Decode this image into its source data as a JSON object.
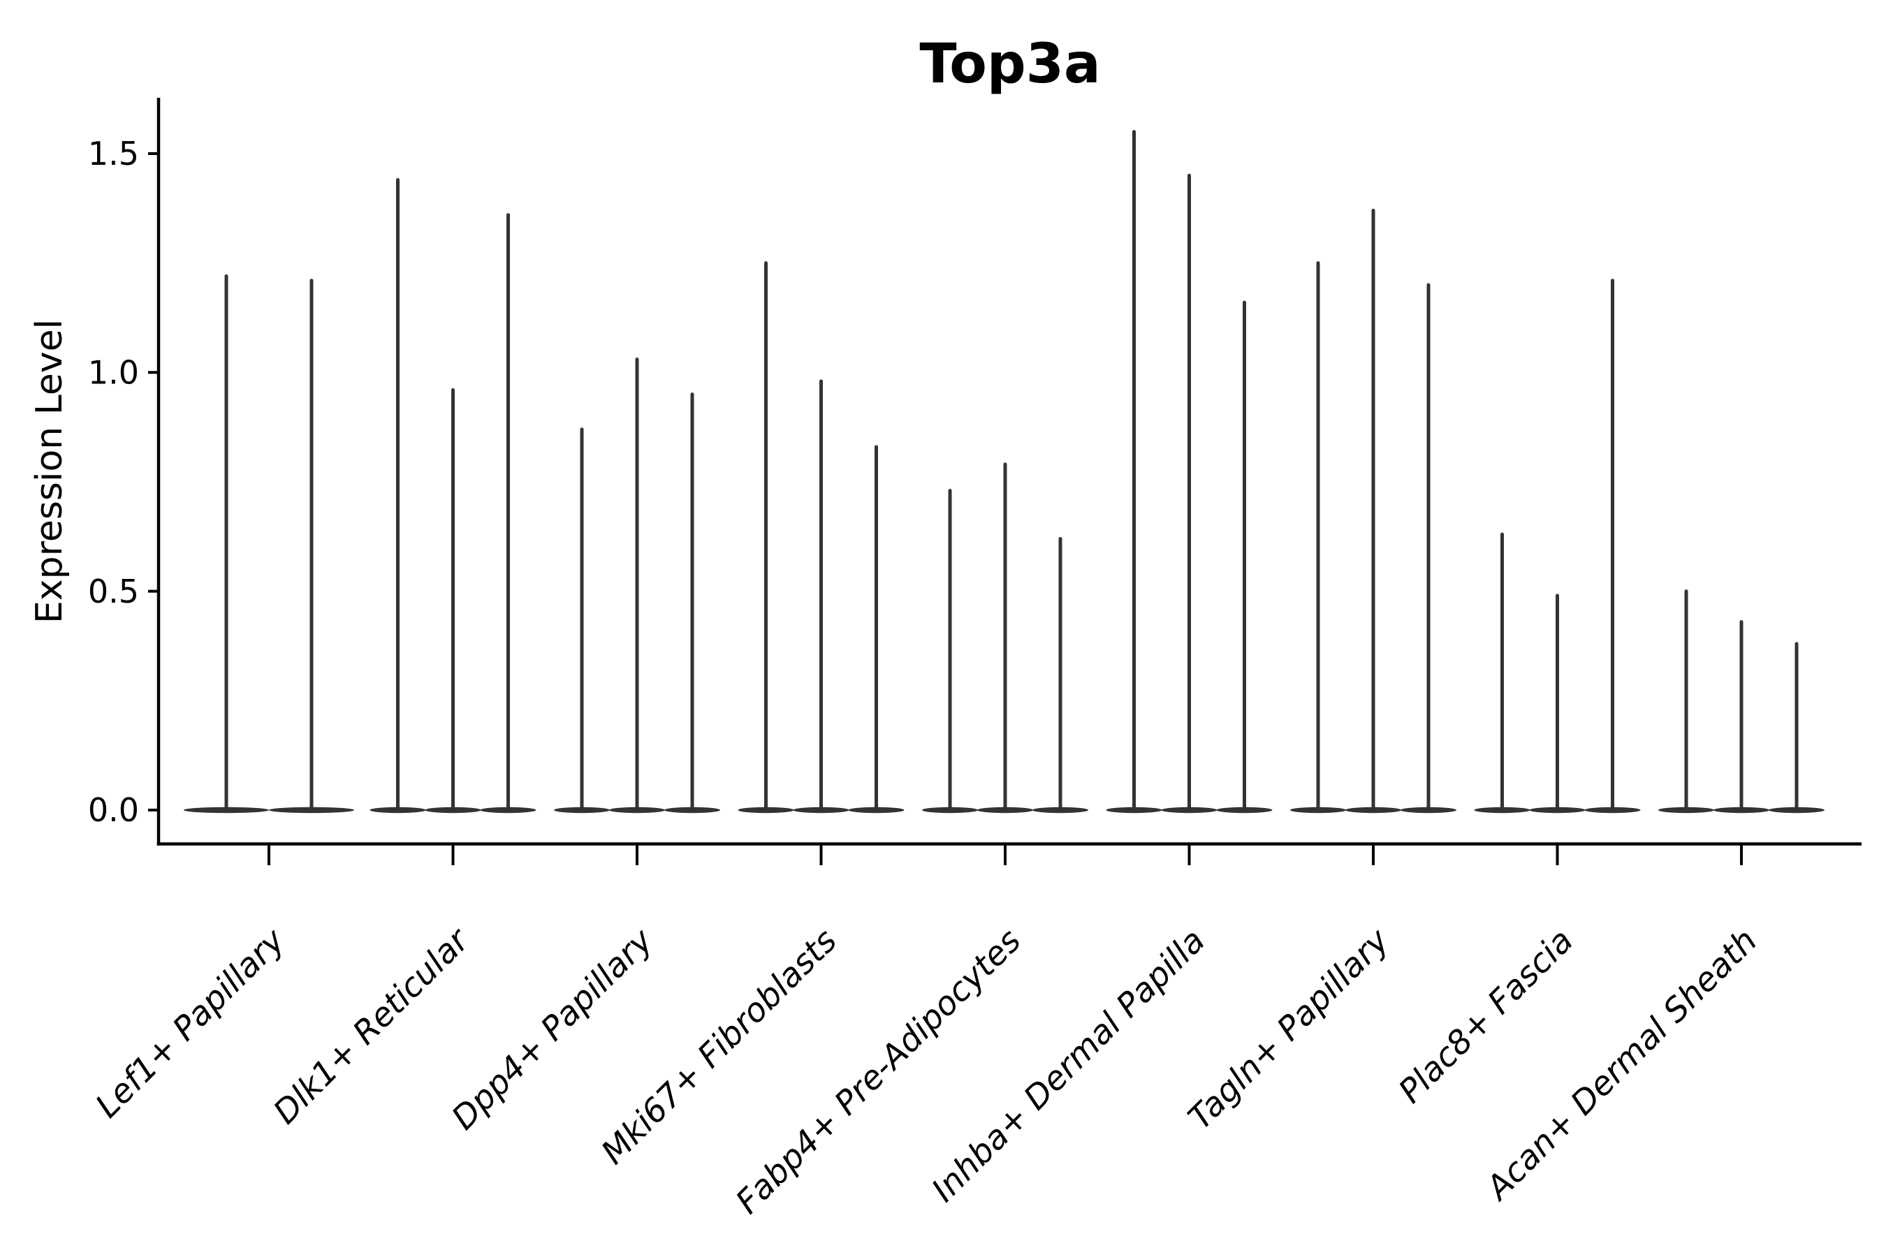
{
  "figure": {
    "title": "Top3a",
    "ylabel": "Expression Level"
  },
  "chart_data": {
    "type": "violin",
    "title": "Top3a",
    "xlabel": "",
    "ylabel": "Expression Level",
    "ytick_labels": [
      "0.0",
      "0.5",
      "1.0",
      "1.5"
    ],
    "yticks": [
      0.0,
      0.5,
      1.0,
      1.5
    ],
    "ylim": [
      -0.08,
      1.63
    ],
    "grid": false,
    "legend_position": "none",
    "categories": [
      "Lef1+ Papillary",
      "Dlk1+ Reticular",
      "Dpp4+ Papillary",
      "Mki67+ Fibroblasts",
      "Fabp4+ Pre-Adipocytes",
      "Inhba+ Dermal Papilla",
      "Tagln+ Papillary",
      "Plac8+ Fascia",
      "Acan+ Dermal Sheath"
    ],
    "violins": [
      {
        "category": "Lef1+ Papillary",
        "max_values": [
          1.22,
          1.21
        ]
      },
      {
        "category": "Dlk1+ Reticular",
        "max_values": [
          1.44,
          0.96,
          1.36
        ]
      },
      {
        "category": "Dpp4+ Papillary",
        "max_values": [
          0.87,
          1.03,
          0.95
        ]
      },
      {
        "category": "Mki67+ Fibroblasts",
        "max_values": [
          1.25,
          0.98,
          0.83
        ]
      },
      {
        "category": "Fabp4+ Pre-Adipocytes",
        "max_values": [
          0.73,
          0.79,
          0.62
        ]
      },
      {
        "category": "Inhba+ Dermal Papilla",
        "max_values": [
          1.55,
          1.45,
          1.16
        ]
      },
      {
        "category": "Tagln+ Papillary",
        "max_values": [
          1.25,
          1.37,
          1.2
        ]
      },
      {
        "category": "Plac8+ Fascia",
        "max_values": [
          0.63,
          0.49,
          1.21
        ]
      },
      {
        "category": "Acan+ Dermal Sheath",
        "max_values": [
          0.5,
          0.43,
          0.38
        ]
      }
    ],
    "shape_note": "each violin is a thin vertical spike from 0 to its max value with a flat wide density lobe at expression 0",
    "colors": {
      "violin": "#333333",
      "axis": "#000000",
      "text": "#000000",
      "background": "#ffffff"
    }
  }
}
